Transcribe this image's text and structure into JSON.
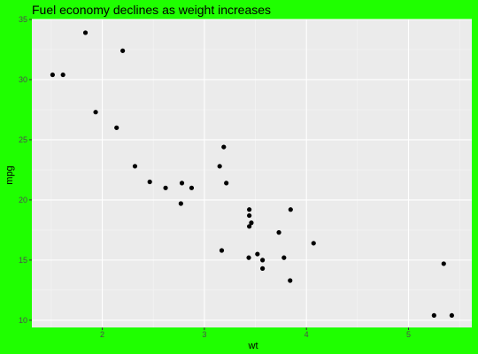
{
  "colors": {
    "background": "#1fff00",
    "panel": "#ebebeb",
    "grid_major": "#ffffff",
    "grid_minor": "#f5f5f5",
    "point": "#000000"
  },
  "chart_data": {
    "type": "scatter",
    "title": "Fuel economy declines as weight increases",
    "xlabel": "wt",
    "ylabel": "mpg",
    "xlim": [
      1.31,
      5.62
    ],
    "ylim": [
      9.4,
      35.0
    ],
    "x_ticks": [
      2,
      3,
      4,
      5
    ],
    "y_ticks": [
      10,
      15,
      20,
      25,
      30,
      35
    ],
    "x_tick_labels": [
      "2",
      "3",
      "4",
      "5"
    ],
    "y_tick_labels": [
      "10",
      "15",
      "20",
      "25",
      "30",
      "35"
    ],
    "grid": true,
    "legend": "none",
    "points": [
      {
        "x": 1.513,
        "y": 30.4
      },
      {
        "x": 1.615,
        "y": 30.4
      },
      {
        "x": 1.835,
        "y": 33.9
      },
      {
        "x": 1.935,
        "y": 27.3
      },
      {
        "x": 2.14,
        "y": 26.0
      },
      {
        "x": 2.2,
        "y": 32.4
      },
      {
        "x": 2.32,
        "y": 22.8
      },
      {
        "x": 2.465,
        "y": 21.5
      },
      {
        "x": 2.62,
        "y": 21.0
      },
      {
        "x": 2.77,
        "y": 19.7
      },
      {
        "x": 2.78,
        "y": 21.4
      },
      {
        "x": 2.875,
        "y": 21.0
      },
      {
        "x": 3.15,
        "y": 22.8
      },
      {
        "x": 3.17,
        "y": 15.8
      },
      {
        "x": 3.19,
        "y": 24.4
      },
      {
        "x": 3.215,
        "y": 21.4
      },
      {
        "x": 3.435,
        "y": 15.2
      },
      {
        "x": 3.44,
        "y": 18.7
      },
      {
        "x": 3.44,
        "y": 19.2
      },
      {
        "x": 3.44,
        "y": 17.8
      },
      {
        "x": 3.46,
        "y": 18.1
      },
      {
        "x": 3.52,
        "y": 15.5
      },
      {
        "x": 3.57,
        "y": 15.0
      },
      {
        "x": 3.57,
        "y": 14.3
      },
      {
        "x": 3.73,
        "y": 17.3
      },
      {
        "x": 3.78,
        "y": 15.2
      },
      {
        "x": 3.84,
        "y": 13.3
      },
      {
        "x": 3.845,
        "y": 19.2
      },
      {
        "x": 4.07,
        "y": 16.4
      },
      {
        "x": 5.25,
        "y": 10.4
      },
      {
        "x": 5.345,
        "y": 14.7
      },
      {
        "x": 5.424,
        "y": 10.4
      }
    ]
  }
}
